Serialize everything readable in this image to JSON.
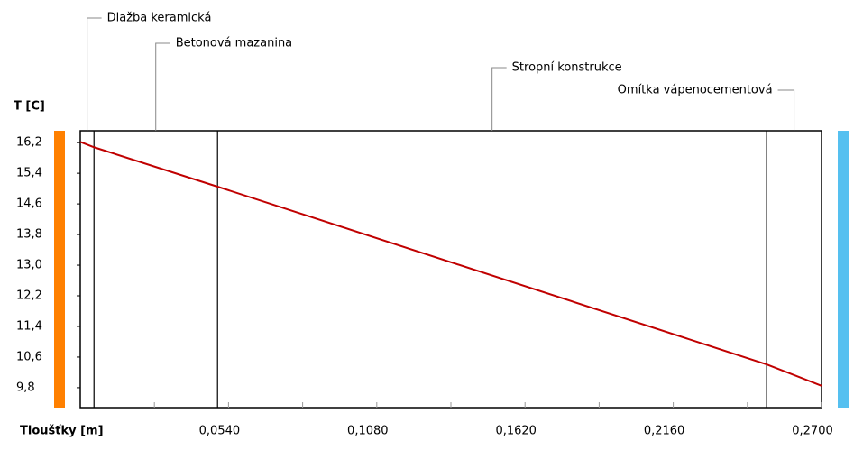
{
  "chart_data": {
    "type": "line",
    "y_axis_label": "T [C]",
    "x_axis_label": "Tloušťky [m]",
    "x": [
      0,
      0.005,
      0.05,
      0.25,
      0.27
    ],
    "series": [
      {
        "name": "T",
        "color": "#c00000",
        "values": [
          16.22,
          16.08,
          15.05,
          10.41,
          9.85
        ]
      }
    ],
    "layers": [
      "Dlažba keramická",
      "Betonová mazanina",
      "Stropní konstrukce",
      "Omítka vápenocementová"
    ],
    "boundaries": [
      0.005,
      0.05,
      0.25
    ],
    "xlim": [
      0,
      0.27
    ],
    "ylim": [
      9.28,
      16.51
    ],
    "xticks": [
      {
        "value": 0.054,
        "label": "0,0540"
      },
      {
        "value": 0.108,
        "label": "0,1080"
      },
      {
        "value": 0.162,
        "label": "0,1620"
      },
      {
        "value": 0.216,
        "label": "0,2160"
      },
      {
        "value": 0.27,
        "label": "0,2700"
      }
    ],
    "xminor_ticks": [
      0.027,
      0.081,
      0.135,
      0.189,
      0.243
    ],
    "yticks": [
      {
        "value": 16.2,
        "label": "16,2"
      },
      {
        "value": 15.4,
        "label": "15,4"
      },
      {
        "value": 14.6,
        "label": "14,6"
      },
      {
        "value": 13.8,
        "label": "13,8"
      },
      {
        "value": 13.0,
        "label": "13,0"
      },
      {
        "value": 12.2,
        "label": "12,2"
      },
      {
        "value": 11.4,
        "label": "11,4"
      },
      {
        "value": 10.6,
        "label": "10,6"
      },
      {
        "value": 9.8,
        "label": "9,8"
      }
    ],
    "inside_color": "#ff8000",
    "outside_color": "#55c0f0"
  }
}
